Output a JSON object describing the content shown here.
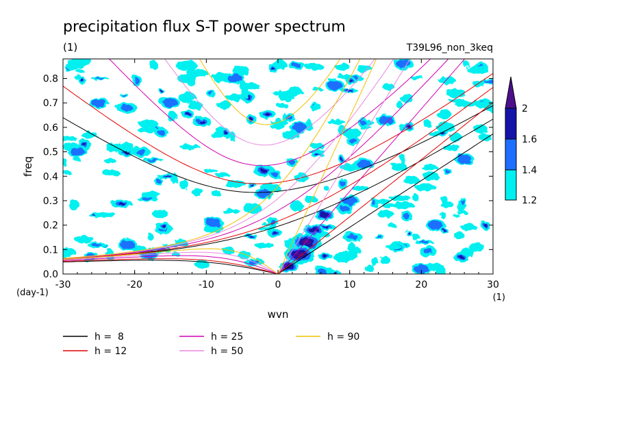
{
  "chart_data": {
    "type": "contour",
    "title": "precipitation flux S-T power spectrum",
    "subtitle_left": "(1)",
    "subtitle_right": "T39L96_non_3keq",
    "xlabel": "wvn",
    "ylabel": "freq",
    "x_unit": "(1)",
    "y_unit": "(day-1)",
    "xlim": [
      -30,
      30
    ],
    "ylim": [
      0,
      0.88
    ],
    "x_ticks": [
      -30,
      -20,
      -10,
      0,
      10,
      20,
      30
    ],
    "x_tick_labels": [
      "-30",
      "-20",
      "-10",
      "0",
      "10",
      "20",
      "30"
    ],
    "y_ticks": [
      0,
      0.1,
      0.2,
      0.3,
      0.4,
      0.5,
      0.6,
      0.7,
      0.8
    ],
    "y_tick_labels": [
      "0.0",
      "0.1",
      "0.2",
      "0.3",
      "0.4",
      "0.5",
      "0.6",
      "0.7",
      "0.8"
    ],
    "colorbar": {
      "levels": [
        1.2,
        1.4,
        1.6,
        2
      ],
      "labels": [
        "1.2",
        "1.4",
        "1.6",
        "2"
      ],
      "colors": [
        "#00f0f0",
        "#1e6fff",
        "#1414a8",
        "#4b0f8c"
      ]
    },
    "dispersion_curves": [
      {
        "name": "h = 8",
        "label": "h =  8",
        "equivalent_depth": 8,
        "color": "#000000"
      },
      {
        "name": "h = 12",
        "label": "h = 12",
        "equivalent_depth": 12,
        "color": "#e00000"
      },
      {
        "name": "h = 25",
        "label": "h = 25",
        "equivalent_depth": 25,
        "color": "#d000b0"
      },
      {
        "name": "h = 50",
        "label": "h = 50",
        "equivalent_depth": 50,
        "color": "#e888e0"
      },
      {
        "name": "h = 90",
        "label": "h = 90",
        "equivalent_depth": 90,
        "color": "#f0c000"
      }
    ],
    "spectrum_blobs": [
      {
        "x": 4.0,
        "y": 0.13,
        "level": 3
      },
      {
        "x": 3.0,
        "y": 0.08,
        "level": 3
      },
      {
        "x": 5.0,
        "y": 0.18,
        "level": 2
      },
      {
        "x": 1.5,
        "y": 0.03,
        "level": 2
      },
      {
        "x": 6.5,
        "y": 0.24,
        "level": 2
      },
      {
        "x": -2.0,
        "y": 0.33,
        "level": 1
      },
      {
        "x": 3.0,
        "y": 0.6,
        "level": 1
      },
      {
        "x": 10.0,
        "y": 0.3,
        "level": 1
      },
      {
        "x": 17.5,
        "y": 0.86,
        "level": 1
      },
      {
        "x": -21.0,
        "y": 0.12,
        "level": 1
      },
      {
        "x": -25.0,
        "y": 0.7,
        "level": 1
      },
      {
        "x": -15.0,
        "y": 0.7,
        "level": 1
      },
      {
        "x": -18.0,
        "y": 0.08,
        "level": 1
      },
      {
        "x": 12.0,
        "y": 0.45,
        "level": 1
      },
      {
        "x": 22.0,
        "y": 0.2,
        "level": 1
      },
      {
        "x": -9.0,
        "y": 0.21,
        "level": 1
      },
      {
        "x": 15.0,
        "y": 0.63,
        "level": 1
      },
      {
        "x": 20.0,
        "y": 0.02,
        "level": 1
      },
      {
        "x": -28.0,
        "y": 0.5,
        "level": 1
      },
      {
        "x": 26.0,
        "y": 0.47,
        "level": 1
      },
      {
        "x": -6.0,
        "y": 0.8,
        "level": 1
      },
      {
        "x": 8.0,
        "y": 0.77,
        "level": 1
      }
    ]
  }
}
